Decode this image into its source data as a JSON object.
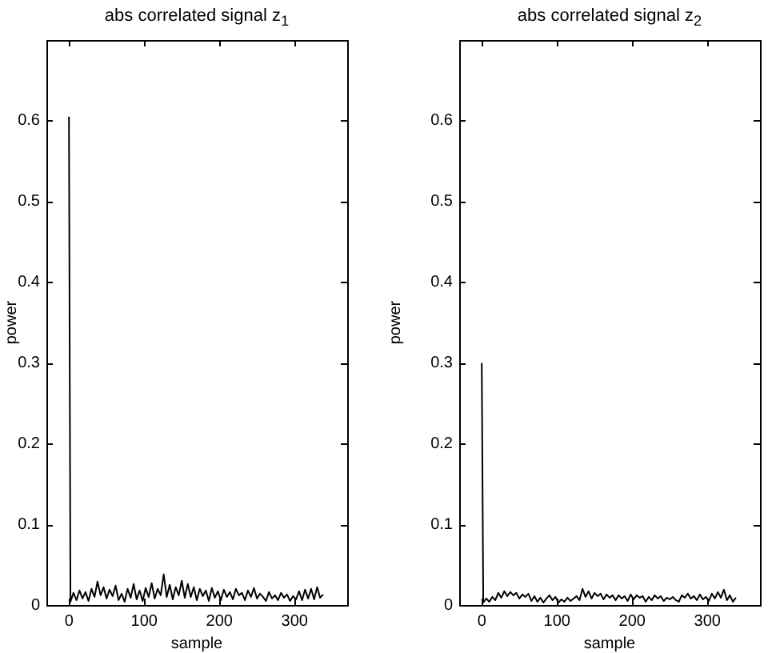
{
  "chart_data": [
    {
      "type": "line",
      "title": "abs correlated signal z$_{1}$",
      "xlabel": "sample",
      "ylabel": "power",
      "xlim": [
        -30,
        370
      ],
      "xticks": [
        0,
        100,
        200,
        300
      ],
      "ylim": [
        0,
        0.7
      ],
      "yticks": [
        0,
        0.1,
        0.2,
        0.3,
        0.4,
        0.5,
        0.6
      ],
      "x": [
        0,
        2,
        6,
        10,
        14,
        18,
        22,
        26,
        30,
        34,
        38,
        42,
        46,
        50,
        54,
        58,
        62,
        66,
        70,
        74,
        78,
        82,
        86,
        90,
        94,
        98,
        102,
        106,
        110,
        114,
        118,
        122,
        126,
        130,
        134,
        138,
        142,
        146,
        150,
        154,
        158,
        162,
        166,
        170,
        174,
        178,
        182,
        186,
        190,
        194,
        198,
        202,
        206,
        210,
        214,
        218,
        222,
        226,
        230,
        234,
        238,
        242,
        246,
        250,
        254,
        258,
        262,
        266,
        270,
        274,
        278,
        282,
        286,
        290,
        294,
        298,
        302,
        306,
        310,
        314,
        318,
        322,
        326,
        330,
        334,
        338
      ],
      "series": [
        {
          "color": "#000000",
          "values": [
            0.605,
            0.004,
            0.015,
            0.006,
            0.018,
            0.008,
            0.016,
            0.005,
            0.02,
            0.01,
            0.029,
            0.012,
            0.022,
            0.008,
            0.019,
            0.011,
            0.024,
            0.006,
            0.014,
            0.004,
            0.02,
            0.009,
            0.026,
            0.007,
            0.018,
            0.005,
            0.021,
            0.01,
            0.027,
            0.008,
            0.02,
            0.012,
            0.038,
            0.01,
            0.025,
            0.007,
            0.022,
            0.012,
            0.03,
            0.009,
            0.026,
            0.01,
            0.022,
            0.006,
            0.02,
            0.011,
            0.018,
            0.005,
            0.021,
            0.009,
            0.017,
            0.006,
            0.019,
            0.01,
            0.016,
            0.007,
            0.02,
            0.012,
            0.015,
            0.006,
            0.018,
            0.01,
            0.021,
            0.008,
            0.014,
            0.01,
            0.005,
            0.016,
            0.008,
            0.012,
            0.006,
            0.015,
            0.009,
            0.013,
            0.005,
            0.011,
            0.007,
            0.017,
            0.006,
            0.019,
            0.008,
            0.02,
            0.007,
            0.022,
            0.009,
            0.013
          ]
        }
      ]
    },
    {
      "type": "line",
      "title": "abs correlated signal z$_{2}$",
      "xlabel": "sample",
      "ylabel": "power",
      "xlim": [
        -30,
        370
      ],
      "xticks": [
        0,
        100,
        200,
        300
      ],
      "ylim": [
        0,
        0.7
      ],
      "yticks": [
        0,
        0.1,
        0.2,
        0.3,
        0.4,
        0.5,
        0.6
      ],
      "x": [
        0,
        2,
        6,
        10,
        14,
        18,
        22,
        26,
        30,
        34,
        38,
        42,
        46,
        50,
        54,
        58,
        62,
        66,
        70,
        74,
        78,
        82,
        86,
        90,
        94,
        98,
        102,
        106,
        110,
        114,
        118,
        122,
        126,
        130,
        134,
        138,
        142,
        146,
        150,
        154,
        158,
        162,
        166,
        170,
        174,
        178,
        182,
        186,
        190,
        194,
        198,
        202,
        206,
        210,
        214,
        218,
        222,
        226,
        230,
        234,
        238,
        242,
        246,
        250,
        254,
        258,
        262,
        266,
        270,
        274,
        278,
        282,
        286,
        290,
        294,
        298,
        302,
        306,
        310,
        314,
        318,
        322,
        326,
        330,
        334,
        338
      ],
      "series": [
        {
          "color": "#000000",
          "values": [
            0.3,
            0.003,
            0.008,
            0.004,
            0.01,
            0.006,
            0.015,
            0.009,
            0.017,
            0.011,
            0.016,
            0.012,
            0.015,
            0.008,
            0.013,
            0.01,
            0.014,
            0.005,
            0.011,
            0.004,
            0.009,
            0.003,
            0.008,
            0.012,
            0.006,
            0.01,
            0.003,
            0.007,
            0.004,
            0.009,
            0.005,
            0.008,
            0.011,
            0.006,
            0.02,
            0.01,
            0.017,
            0.008,
            0.015,
            0.011,
            0.014,
            0.007,
            0.013,
            0.009,
            0.012,
            0.006,
            0.012,
            0.008,
            0.011,
            0.005,
            0.013,
            0.007,
            0.012,
            0.009,
            0.011,
            0.004,
            0.01,
            0.006,
            0.012,
            0.008,
            0.011,
            0.005,
            0.009,
            0.007,
            0.01,
            0.006,
            0.004,
            0.012,
            0.009,
            0.014,
            0.008,
            0.011,
            0.006,
            0.013,
            0.007,
            0.01,
            0.005,
            0.014,
            0.008,
            0.016,
            0.009,
            0.019,
            0.006,
            0.012,
            0.004,
            0.009
          ]
        }
      ]
    }
  ]
}
